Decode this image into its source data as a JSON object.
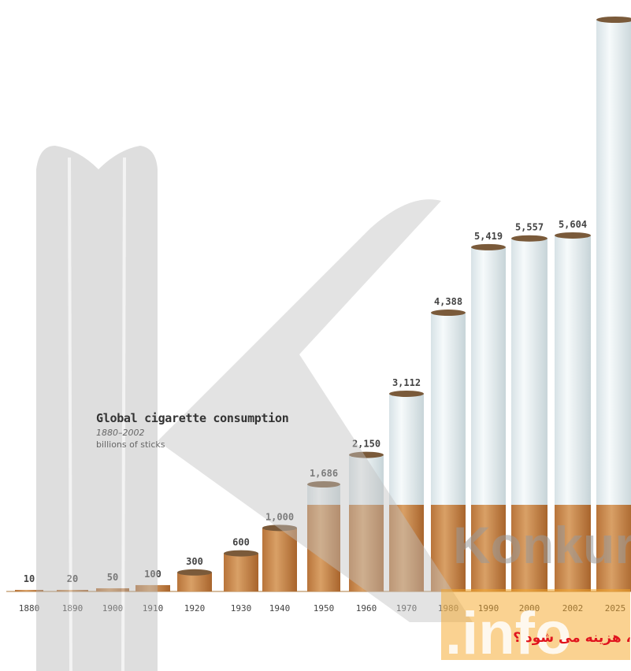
{
  "chart_data": {
    "type": "bar",
    "title": "Global cigarette consumption",
    "subtitle": "1880–2002",
    "ylabel": "billions of sticks",
    "categories": [
      "1880",
      "1890",
      "1900",
      "1910",
      "1920",
      "1930",
      "1940",
      "1950",
      "1960",
      "1970",
      "1980",
      "1990",
      "2000",
      "2002",
      "2025"
    ],
    "values": [
      10,
      20,
      50,
      100,
      300,
      600,
      1000,
      1686,
      2150,
      3112,
      4388,
      5419,
      5557,
      5604,
      9000
    ],
    "value_labels": [
      "10",
      "20",
      "50",
      "100",
      "300",
      "600",
      "1,000",
      "1,686",
      "2,150",
      "3,112",
      "4,388",
      "5,419",
      "5,557",
      "5,604",
      ""
    ],
    "ylim": [
      0,
      9000
    ],
    "grid": false,
    "legend": "none",
    "colors": {
      "filter": "#c98b4e",
      "paper": "#e9f0f2",
      "tobacco": "#7a5a3a",
      "label": "#444444"
    }
  },
  "watermark": {
    "brand_words": [
      "Konkur",
      ".info"
    ],
    "colors": {
      "k_shape": "#bdbdbd",
      "dot_orange": "#f5a623"
    }
  },
  "footer": {
    "text": "، هزینه می شود ؟"
  }
}
